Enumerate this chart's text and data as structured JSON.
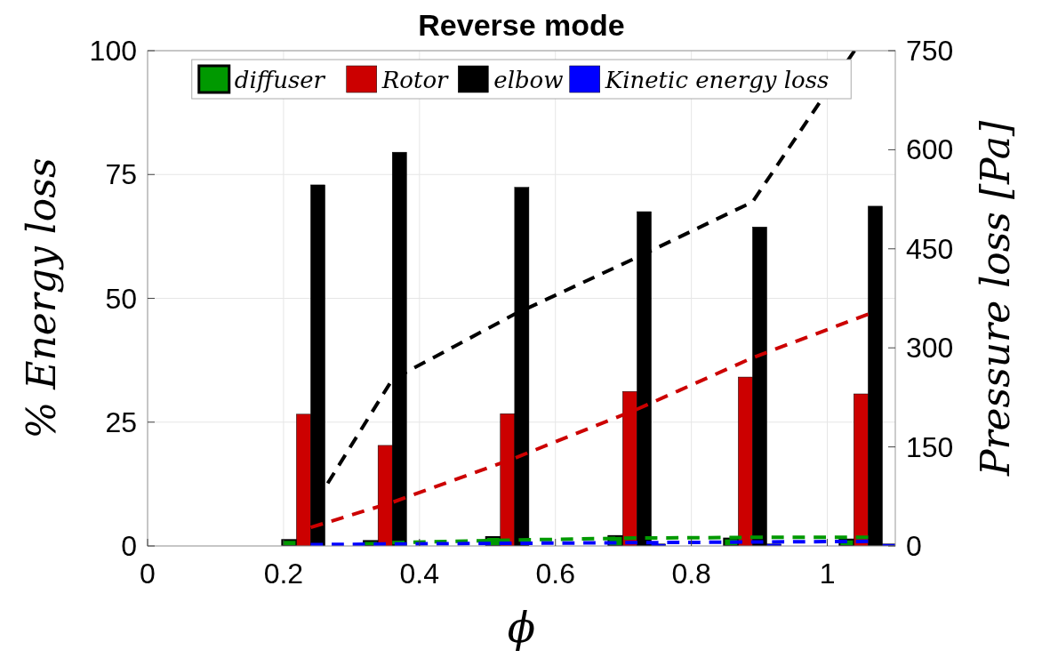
{
  "chart_data": {
    "type": "bar",
    "title": "Reverse mode",
    "xlabel": "ϕ",
    "ylabel": "% Energy loss",
    "y2label": "Pressure loss [Pa]",
    "x": [
      0.24,
      0.36,
      0.54,
      0.72,
      0.89,
      1.06
    ],
    "xlim": [
      0,
      1.1
    ],
    "xticks": [
      0,
      0.2,
      0.4,
      0.6,
      0.8,
      1
    ],
    "ylim": [
      0,
      100
    ],
    "yticks": [
      0,
      25,
      50,
      75,
      100
    ],
    "y2lim": [
      0,
      750
    ],
    "y2ticks": [
      0,
      150,
      300,
      450,
      600,
      750
    ],
    "grid": true,
    "legend": "top",
    "series": [
      {
        "name": "diffuser",
        "color": "#009900",
        "values": [
          1.2,
          1.0,
          1.8,
          2.0,
          1.5,
          1.3
        ]
      },
      {
        "name": "Rotor",
        "color": "#cc0000",
        "values": [
          26.6,
          20.3,
          26.7,
          31.2,
          34.1,
          30.7
        ]
      },
      {
        "name": "elbow",
        "color": "#000000",
        "values": [
          72.9,
          79.5,
          72.4,
          67.5,
          64.4,
          68.6
        ]
      },
      {
        "name": "Kinetic energy loss",
        "color": "#0000ff",
        "values": [
          null,
          null,
          null,
          0.4,
          0.4,
          0.4
        ]
      },
      {
        "type": "line",
        "axis": "y2",
        "color": "#000000",
        "line_style": "dashed",
        "marker": "none",
        "x": [
          0.265,
          0.36,
          0.54,
          0.72,
          0.89,
          1.04
        ],
        "values": [
          95,
          252,
          351,
          437,
          521,
          750
        ]
      },
      {
        "type": "line",
        "axis": "y2",
        "color": "#cc0000",
        "line_style": "dashed",
        "marker": "none",
        "values": [
          28,
          66,
          133,
          207,
          285,
          351
        ]
      },
      {
        "type": "line",
        "axis": "y2",
        "color": "#009900",
        "line_style": "dashed",
        "marker": "none",
        "values": [
          null,
          5,
          9,
          12,
          13,
          13
        ]
      },
      {
        "type": "line",
        "axis": "y2",
        "color": "#0000ff",
        "line_style": "dashed",
        "marker": "none",
        "values": [
          2,
          3,
          4,
          5,
          6,
          7
        ]
      }
    ]
  }
}
